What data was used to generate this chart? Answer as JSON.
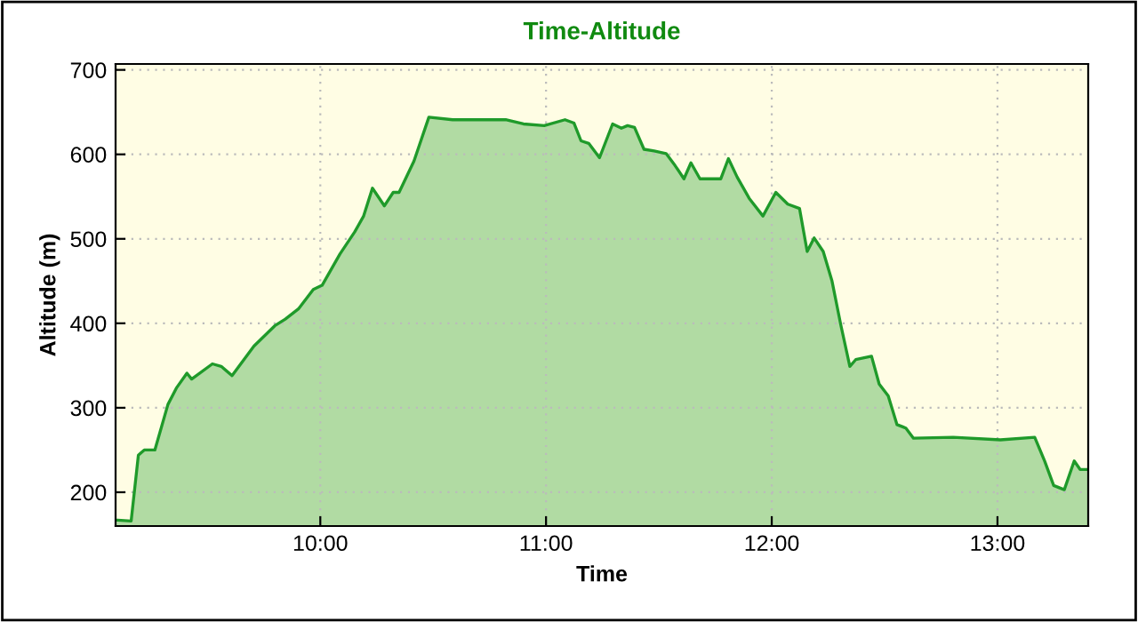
{
  "chart_data": {
    "type": "area",
    "title": "Time-Altitude",
    "xlabel": "Time",
    "ylabel": "Altitude (m)",
    "series": [
      {
        "color": "#1f9a2a",
        "x": [
          9.093,
          9.102,
          9.162,
          9.194,
          9.22,
          9.267,
          9.325,
          9.364,
          9.409,
          9.43,
          9.522,
          9.561,
          9.609,
          9.706,
          9.798,
          9.845,
          9.903,
          9.969,
          10.008,
          10.087,
          10.152,
          10.192,
          10.231,
          10.284,
          10.323,
          10.349,
          10.415,
          10.481,
          10.586,
          10.821,
          10.9,
          10.992,
          11.084,
          11.124,
          11.155,
          11.189,
          11.237,
          11.295,
          11.334,
          11.361,
          11.392,
          11.434,
          11.479,
          11.532,
          11.571,
          11.611,
          11.642,
          11.682,
          11.742,
          11.774,
          11.808,
          11.847,
          11.9,
          11.961,
          12.018,
          12.071,
          12.123,
          12.157,
          12.188,
          12.228,
          12.267,
          12.306,
          12.346,
          12.372,
          12.442,
          12.476,
          12.516,
          12.555,
          12.594,
          12.628,
          12.804,
          13.013,
          13.165,
          13.209,
          13.249,
          13.296,
          13.34,
          13.366,
          13.398
        ],
        "values": [
          167,
          167,
          166,
          244,
          250,
          250,
          304,
          324,
          341,
          334,
          352,
          349,
          338,
          373,
          397,
          405,
          417,
          440,
          445,
          482,
          508,
          527,
          560,
          539,
          555,
          555,
          592,
          644,
          641,
          641,
          636,
          634,
          641,
          637,
          616,
          613,
          596,
          636,
          631,
          634,
          632,
          606,
          604,
          601,
          587,
          571,
          590,
          571,
          571,
          571,
          595,
          573,
          548,
          527,
          555,
          541,
          536,
          485,
          501,
          485,
          450,
          398,
          349,
          357,
          361,
          328,
          314,
          280,
          276,
          264,
          265,
          262,
          265,
          237,
          208,
          203,
          237,
          227,
          227
        ]
      }
    ],
    "xlim": [
      9.093,
      13.402
    ],
    "xticks": [
      {
        "value": 10,
        "label": "10:00"
      },
      {
        "value": 11,
        "label": "11:00"
      },
      {
        "value": 12,
        "label": "12:00"
      },
      {
        "value": 13,
        "label": "13:00"
      }
    ],
    "ylim": [
      160,
      707
    ],
    "yticks": [
      200,
      300,
      400,
      500,
      600,
      700
    ],
    "grid": true,
    "legend": false
  }
}
